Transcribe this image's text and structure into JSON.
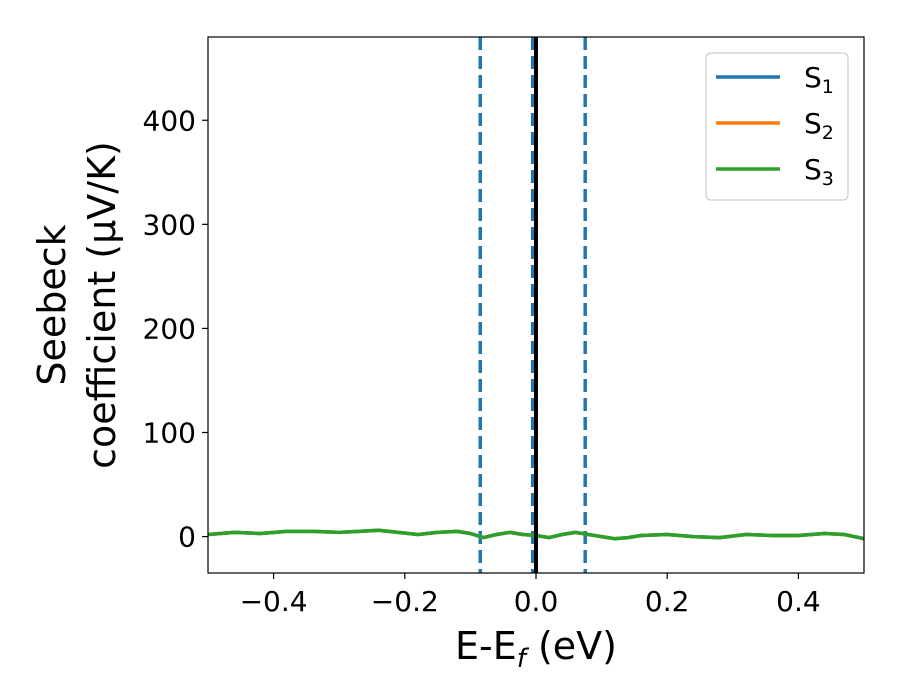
{
  "chart_data": {
    "type": "line",
    "xlabel_main": "E-E",
    "xlabel_sub": "f",
    "xlabel_unit": " (eV)",
    "ylabel_line1": "Seebeck",
    "ylabel_line2": "coefficient  (μV/K)",
    "xlim": [
      -0.5,
      0.5
    ],
    "ylim": [
      -35,
      480
    ],
    "xticks": [
      -0.4,
      -0.2,
      0.0,
      0.2,
      0.4
    ],
    "xtick_labels": [
      "−0.4",
      "−0.2",
      "0.0",
      "0.2",
      "0.4"
    ],
    "yticks": [
      0,
      100,
      200,
      300,
      400
    ],
    "ytick_labels": [
      "0",
      "100",
      "200",
      "300",
      "400"
    ],
    "grid": false,
    "legend_position": "top-right",
    "x": [
      -0.5,
      -0.46,
      -0.42,
      -0.38,
      -0.34,
      -0.3,
      -0.27,
      -0.24,
      -0.21,
      -0.18,
      -0.15,
      -0.12,
      -0.1,
      -0.08,
      -0.06,
      -0.04,
      -0.02,
      0.0,
      0.02,
      0.04,
      0.06,
      0.08,
      0.1,
      0.12,
      0.14,
      0.16,
      0.2,
      0.24,
      0.28,
      0.32,
      0.36,
      0.4,
      0.44,
      0.47,
      0.5
    ],
    "series": [
      {
        "name": "S",
        "subscript": "1",
        "color": "#1f77b4",
        "values": [
          2,
          4,
          3,
          5,
          5,
          4,
          5,
          6,
          4,
          2,
          4,
          5,
          3,
          -1,
          2,
          4,
          2,
          1,
          -1,
          2,
          4,
          2,
          0,
          -2,
          -1,
          1,
          2,
          0,
          -1,
          2,
          1,
          1,
          3,
          2,
          -2
        ]
      },
      {
        "name": "S",
        "subscript": "2",
        "color": "#ff7f0e",
        "values": [
          2,
          4,
          3,
          5,
          5,
          4,
          5,
          6,
          4,
          2,
          4,
          5,
          3,
          -1,
          2,
          4,
          2,
          1,
          -1,
          2,
          4,
          2,
          0,
          -2,
          -1,
          1,
          2,
          0,
          -1,
          2,
          1,
          1,
          3,
          2,
          -2
        ]
      },
      {
        "name": "S",
        "subscript": "3",
        "color": "#2ca02c",
        "values": [
          2,
          4,
          3,
          5,
          5,
          4,
          5,
          6,
          4,
          2,
          4,
          5,
          3,
          -1,
          2,
          4,
          2,
          1,
          -1,
          2,
          4,
          2,
          0,
          -2,
          -1,
          1,
          2,
          0,
          -1,
          2,
          1,
          1,
          3,
          2,
          -2
        ]
      }
    ],
    "vlines_dashed": [
      {
        "x": -0.085,
        "color": "#1f77b4"
      },
      {
        "x": -0.005,
        "color": "#1f77b4"
      },
      {
        "x": 0.075,
        "color": "#1f77b4"
      }
    ],
    "vline_solid": {
      "x": 0.0,
      "color": "#000000"
    }
  }
}
